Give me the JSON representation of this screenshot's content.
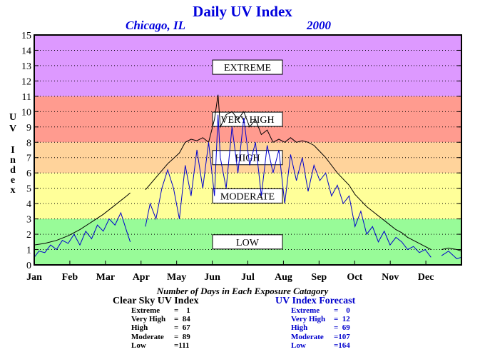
{
  "chart_data": {
    "type": "line",
    "title": "Daily UV Index",
    "location": "Chicago, IL",
    "year": "2000",
    "ylabel": "UV Index",
    "xlabel": "",
    "ylim": [
      0,
      15
    ],
    "yticks": [
      "0",
      "1",
      "2",
      "3",
      "4",
      "5",
      "6",
      "7",
      "8",
      "9",
      "10",
      "11",
      "12",
      "13",
      "14",
      "15"
    ],
    "months": [
      "Jan",
      "Feb",
      "Mar",
      "Apr",
      "May",
      "Jun",
      "Jul",
      "Aug",
      "Sep",
      "Oct",
      "Nov",
      "Dec"
    ],
    "grid": true,
    "bands": [
      {
        "label": "LOW",
        "from": 0,
        "to": 3,
        "color": "#98fb98"
      },
      {
        "label": "MODERATE",
        "from": 3,
        "to": 6,
        "color": "#ffff99"
      },
      {
        "label": "HIGH",
        "from": 6,
        "to": 8,
        "color": "#ffd39b"
      },
      {
        "label": "VERY HIGH",
        "from": 8,
        "to": 11,
        "color": "#ff9b8f"
      },
      {
        "label": "EXTREME",
        "from": 11,
        "to": 15,
        "color": "#dd99ff"
      }
    ],
    "series": [
      {
        "name": "Clear Sky UV Index",
        "color": "#000000",
        "points": [
          [
            1,
            1.3
          ],
          [
            10,
            1.4
          ],
          [
            20,
            1.6
          ],
          [
            30,
            1.9
          ],
          [
            40,
            2.3
          ],
          [
            50,
            2.8
          ],
          [
            60,
            3.3
          ],
          [
            70,
            3.9
          ],
          [
            80,
            4.5
          ],
          [
            83,
            4.7
          ],
          null,
          [
            96,
            4.9
          ],
          [
            105,
            5.7
          ],
          [
            115,
            6.6
          ],
          [
            125,
            7.3
          ],
          [
            130,
            8.0
          ],
          [
            135,
            8.2
          ],
          [
            140,
            8.1
          ],
          [
            145,
            8.3
          ],
          [
            150,
            8.0
          ],
          [
            155,
            9.5
          ],
          [
            158,
            11.1
          ],
          [
            160,
            9.0
          ],
          [
            165,
            9.8
          ],
          [
            170,
            10.0
          ],
          [
            175,
            9.5
          ],
          [
            180,
            10.0
          ],
          [
            185,
            9.0
          ],
          [
            190,
            9.5
          ],
          [
            195,
            8.5
          ],
          [
            200,
            8.8
          ],
          [
            205,
            8.0
          ],
          [
            210,
            8.2
          ],
          [
            215,
            8.0
          ],
          [
            220,
            8.3
          ],
          [
            225,
            8.0
          ],
          [
            230,
            8.1
          ],
          [
            235,
            8.0
          ],
          [
            240,
            7.8
          ],
          [
            245,
            7.4
          ],
          [
            250,
            7.0
          ],
          [
            255,
            6.5
          ],
          [
            260,
            6.0
          ],
          [
            265,
            5.6
          ],
          [
            270,
            5.2
          ],
          [
            275,
            4.6
          ],
          [
            280,
            4.2
          ],
          [
            285,
            3.8
          ],
          [
            290,
            3.5
          ],
          [
            295,
            3.2
          ],
          [
            300,
            2.9
          ],
          [
            305,
            2.6
          ],
          [
            310,
            2.3
          ],
          [
            315,
            2.1
          ],
          [
            320,
            1.8
          ],
          [
            325,
            1.6
          ],
          [
            330,
            1.4
          ],
          [
            335,
            1.2
          ],
          [
            340,
            1.0
          ],
          null,
          [
            349,
            1.0
          ],
          [
            355,
            1.1
          ],
          [
            362,
            1.0
          ],
          [
            366,
            0.9
          ]
        ]
      },
      {
        "name": "UV Index Forecast",
        "color": "#0000cc",
        "points": [
          [
            1,
            0.5
          ],
          [
            5,
            0.9
          ],
          [
            10,
            0.8
          ],
          [
            15,
            1.3
          ],
          [
            20,
            1.0
          ],
          [
            25,
            1.6
          ],
          [
            30,
            1.4
          ],
          [
            35,
            2.0
          ],
          [
            40,
            1.3
          ],
          [
            45,
            2.2
          ],
          [
            50,
            1.7
          ],
          [
            55,
            2.6
          ],
          [
            60,
            2.2
          ],
          [
            65,
            3.0
          ],
          [
            70,
            2.6
          ],
          [
            75,
            3.4
          ],
          [
            80,
            2.2
          ],
          [
            83,
            1.5
          ],
          null,
          [
            96,
            2.5
          ],
          [
            100,
            4.0
          ],
          [
            105,
            3.0
          ],
          [
            110,
            5.0
          ],
          [
            115,
            6.2
          ],
          [
            120,
            5.0
          ],
          [
            125,
            3.0
          ],
          [
            130,
            6.5
          ],
          [
            135,
            4.5
          ],
          [
            140,
            7.5
          ],
          [
            145,
            5.0
          ],
          [
            150,
            8.0
          ],
          [
            155,
            4.5
          ],
          [
            158,
            9.8
          ],
          [
            160,
            7.0
          ],
          [
            165,
            5.0
          ],
          [
            170,
            9.0
          ],
          [
            175,
            6.0
          ],
          [
            180,
            9.6
          ],
          [
            185,
            6.5
          ],
          [
            190,
            8.0
          ],
          [
            195,
            4.5
          ],
          [
            200,
            7.8
          ],
          [
            205,
            6.0
          ],
          [
            210,
            7.5
          ],
          [
            215,
            4.0
          ],
          [
            220,
            7.2
          ],
          [
            225,
            5.5
          ],
          [
            230,
            7.0
          ],
          [
            235,
            4.8
          ],
          [
            240,
            6.5
          ],
          [
            245,
            5.5
          ],
          [
            250,
            6.0
          ],
          [
            255,
            4.5
          ],
          [
            260,
            5.2
          ],
          [
            265,
            4.0
          ],
          [
            270,
            4.5
          ],
          [
            275,
            2.5
          ],
          [
            280,
            3.5
          ],
          [
            285,
            2.0
          ],
          [
            290,
            2.5
          ],
          [
            295,
            1.5
          ],
          [
            300,
            2.2
          ],
          [
            305,
            1.3
          ],
          [
            310,
            1.8
          ],
          [
            315,
            1.5
          ],
          [
            320,
            1.0
          ],
          [
            325,
            1.2
          ],
          [
            330,
            0.8
          ],
          [
            335,
            1.0
          ],
          [
            340,
            0.5
          ],
          null,
          [
            349,
            0.6
          ],
          [
            355,
            0.9
          ],
          [
            362,
            0.4
          ],
          [
            366,
            0.5
          ]
        ]
      }
    ]
  },
  "caption": "Number of Days in Each Exposure Catagory",
  "tables": {
    "clear": {
      "title": "Clear Sky UV Index",
      "rows": [
        {
          "name": "Extreme",
          "val": "=    1"
        },
        {
          "name": "Very High",
          "val": "=  84"
        },
        {
          "name": "High",
          "val": "=  67"
        },
        {
          "name": "Moderate",
          "val": "=  89"
        },
        {
          "name": "Low",
          "val": "=111"
        }
      ]
    },
    "forecast": {
      "title": "UV Index Forecast",
      "rows": [
        {
          "name": "Extreme",
          "val": "=    0"
        },
        {
          "name": "Very High",
          "val": "=  12"
        },
        {
          "name": "High",
          "val": "=  69"
        },
        {
          "name": "Moderate",
          "val": "=107"
        },
        {
          "name": "Low",
          "val": "=164"
        }
      ]
    }
  }
}
